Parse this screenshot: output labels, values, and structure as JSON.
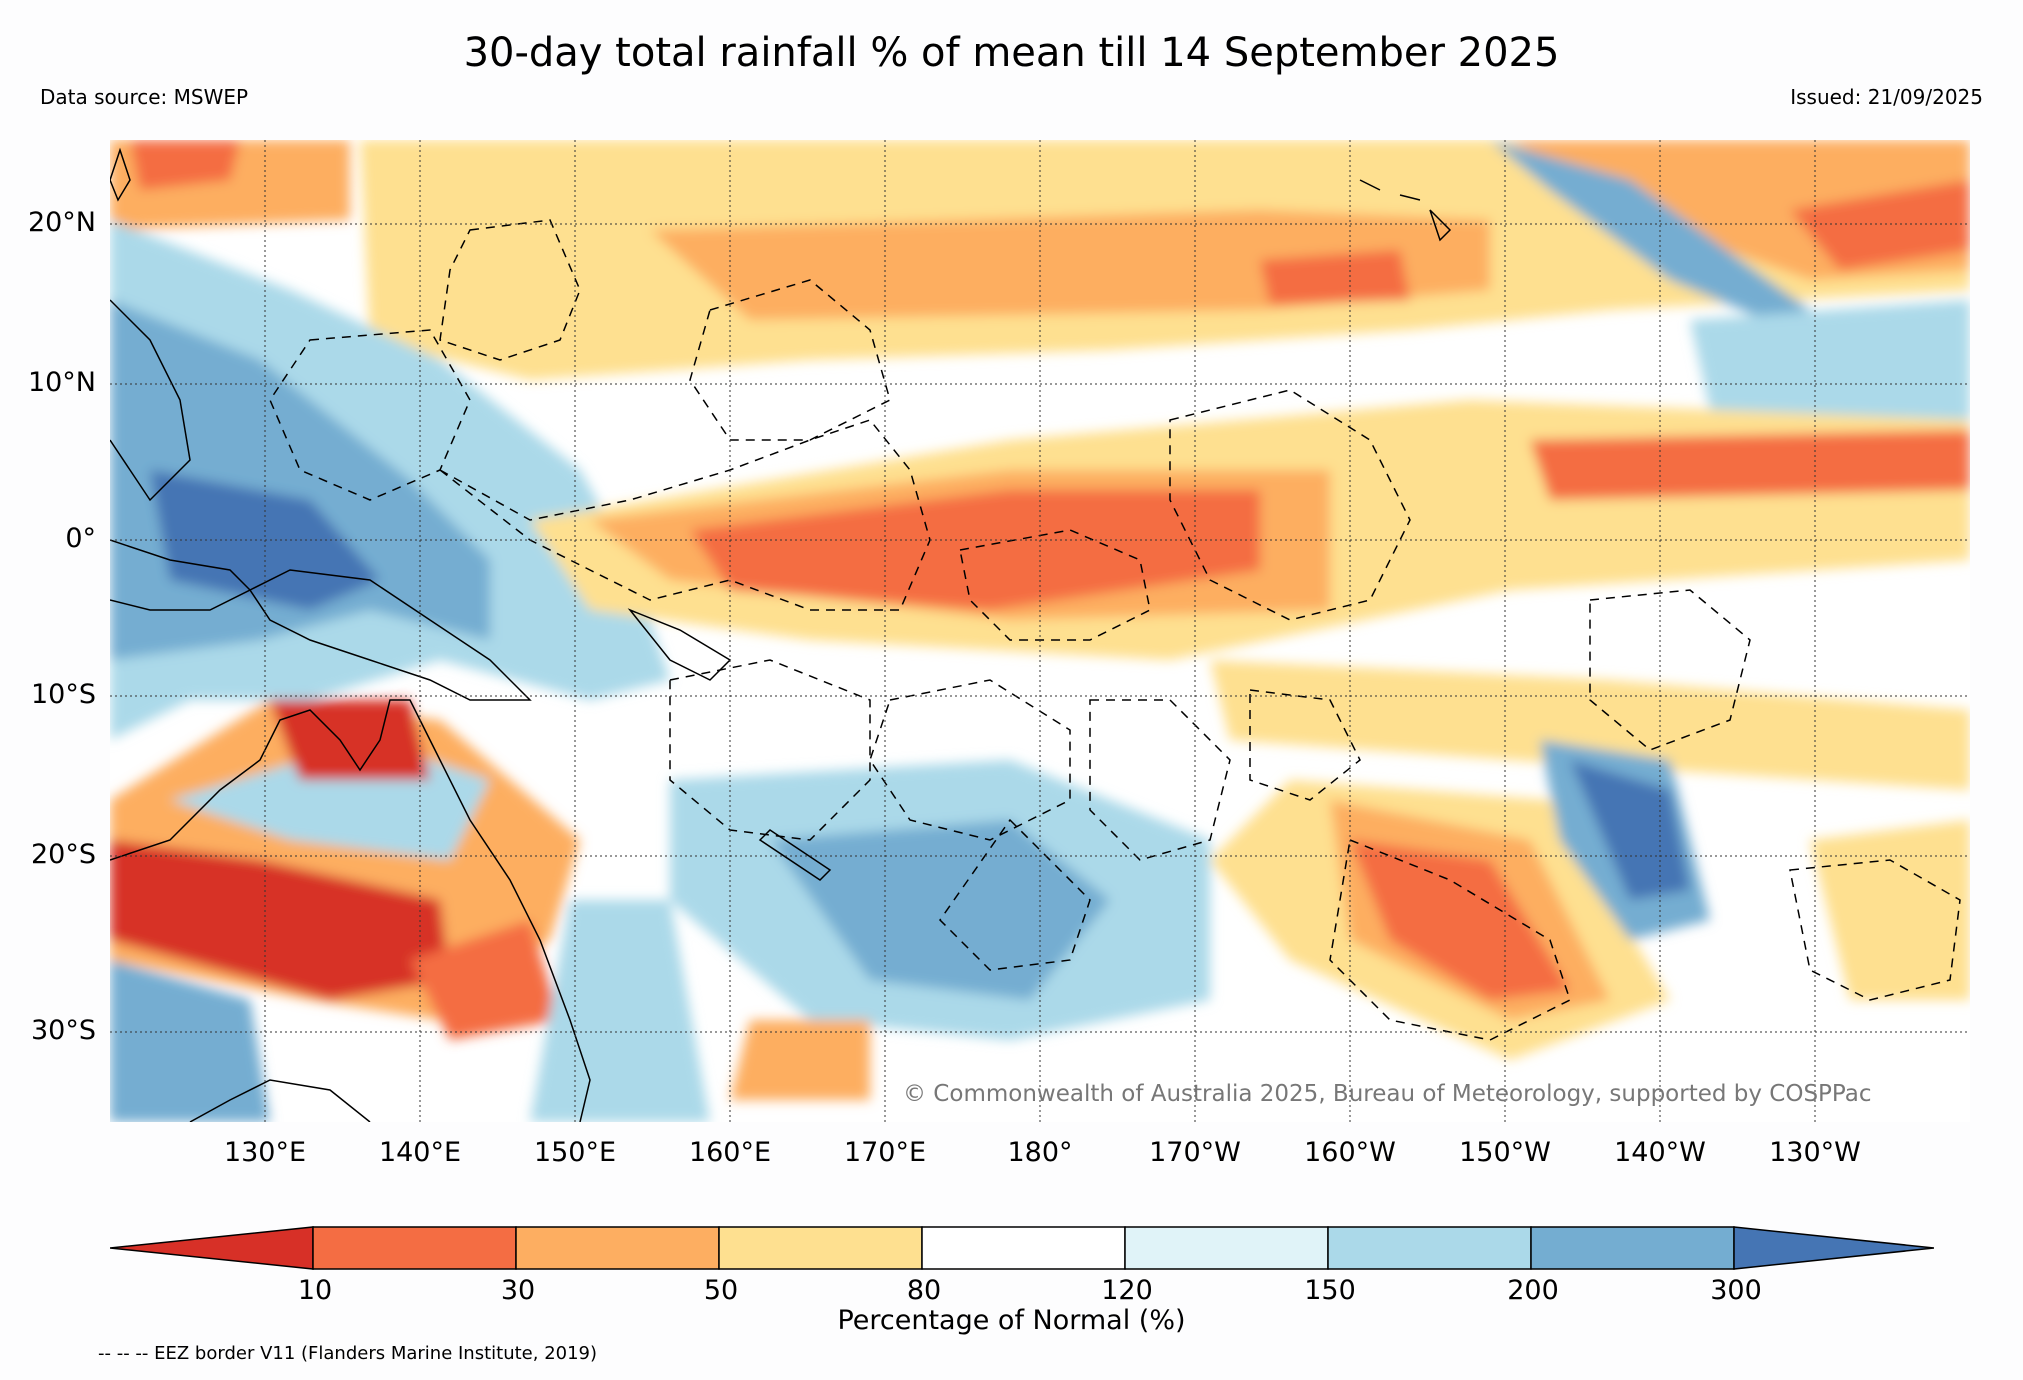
{
  "title": "30-day total rainfall % of mean till 14 September 2025",
  "data_source": "Data source: MSWEP",
  "issued": "Issued: 21/09/2025",
  "copyright": "© Commonwealth of Australia 2025, Bureau of Meteorology, supported by COSPPac",
  "latitude_labels": [
    "20°N",
    "10°N",
    "0°",
    "10°S",
    "20°S",
    "30°S"
  ],
  "longitude_labels": [
    "130°E",
    "140°E",
    "150°E",
    "160°E",
    "170°E",
    "180°",
    "170°W",
    "160°W",
    "150°W",
    "140°W",
    "130°W"
  ],
  "colorbar": {
    "label": "Percentage of Normal (%)",
    "ticks": [
      "10",
      "30",
      "50",
      "80",
      "120",
      "150",
      "200",
      "300"
    ],
    "colors": {
      "lt10": "#d73027",
      "10-30": "#f46d43",
      "30-50": "#fdae61",
      "50-80": "#fee090",
      "80-120": "#ffffff",
      "120-150": "#e0f3f8",
      "150-200": "#abd9e9",
      "200-300": "#74add1",
      "gt300": "#4575b4"
    }
  },
  "eez_note": "-- -- -- EEZ border V11 (Flanders Marine Institute, 2019)"
}
